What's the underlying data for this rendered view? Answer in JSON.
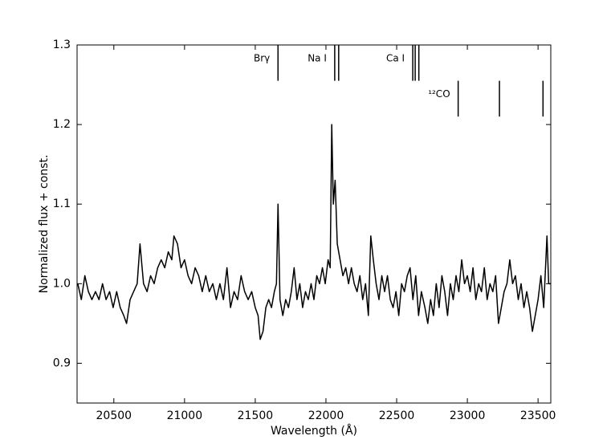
{
  "chart_data": {
    "type": "line",
    "xlabel": "Wavelength (Å)",
    "ylabel": "Normalized flux + const.",
    "xlim": [
      20240,
      23590
    ],
    "ylim": [
      0.85,
      1.3
    ],
    "xticks": [
      20500,
      21000,
      21500,
      22000,
      22500,
      23000,
      23500
    ],
    "yticks": [
      0.9,
      {
        "value": 1,
        "label": "1.0"
      },
      1.1,
      1.2,
      1.3
    ],
    "grid": false,
    "series": [
      {
        "color": "#000000",
        "x": [
          20245,
          20270,
          20295,
          20320,
          20345,
          20370,
          20395,
          20420,
          20445,
          20470,
          20495,
          20520,
          20545,
          20570,
          20590,
          20615,
          20640,
          20665,
          20685,
          20710,
          20735,
          20760,
          20785,
          20810,
          20835,
          20860,
          20885,
          20910,
          20925,
          20950,
          20975,
          21000,
          21025,
          21050,
          21075,
          21100,
          21125,
          21150,
          21175,
          21200,
          21225,
          21250,
          21275,
          21300,
          21325,
          21350,
          21375,
          21400,
          21425,
          21450,
          21475,
          21500,
          21520,
          21535,
          21555,
          21575,
          21595,
          21615,
          21635,
          21650,
          21661,
          21675,
          21695,
          21715,
          21735,
          21755,
          21775,
          21795,
          21815,
          21835,
          21855,
          21875,
          21895,
          21915,
          21935,
          21955,
          21975,
          21995,
          22015,
          22030,
          22041,
          22052,
          22065,
          22080,
          22100,
          22120,
          22140,
          22160,
          22180,
          22200,
          22220,
          22240,
          22260,
          22280,
          22300,
          22317,
          22335,
          22355,
          22375,
          22395,
          22415,
          22435,
          22455,
          22475,
          22495,
          22515,
          22535,
          22555,
          22575,
          22595,
          22615,
          22635,
          22655,
          22675,
          22700,
          22720,
          22740,
          22760,
          22780,
          22800,
          22820,
          22840,
          22860,
          22880,
          22900,
          22920,
          22940,
          22960,
          22980,
          23000,
          23020,
          23040,
          23060,
          23080,
          23100,
          23120,
          23140,
          23160,
          23180,
          23200,
          23220,
          23240,
          23260,
          23280,
          23300,
          23320,
          23340,
          23360,
          23380,
          23400,
          23420,
          23440,
          23460,
          23480,
          23500,
          23520,
          23540,
          23563,
          23575,
          23590
        ],
        "values": [
          1.0,
          0.98,
          1.01,
          0.99,
          0.98,
          0.99,
          0.98,
          1.0,
          0.98,
          0.99,
          0.97,
          0.99,
          0.97,
          0.96,
          0.95,
          0.98,
          0.99,
          1.0,
          1.05,
          1.0,
          0.99,
          1.01,
          1.0,
          1.02,
          1.03,
          1.02,
          1.04,
          1.03,
          1.06,
          1.05,
          1.02,
          1.03,
          1.01,
          1.0,
          1.02,
          1.01,
          0.99,
          1.01,
          0.99,
          1.0,
          0.98,
          1.0,
          0.98,
          1.02,
          0.97,
          0.99,
          0.98,
          1.01,
          0.99,
          0.98,
          0.99,
          0.97,
          0.96,
          0.93,
          0.94,
          0.97,
          0.98,
          0.97,
          0.99,
          1.0,
          1.1,
          0.98,
          0.96,
          0.98,
          0.97,
          0.99,
          1.02,
          0.98,
          1.0,
          0.97,
          0.99,
          0.98,
          1.0,
          0.98,
          1.01,
          1.0,
          1.02,
          1.0,
          1.03,
          1.02,
          1.2,
          1.1,
          1.13,
          1.05,
          1.03,
          1.01,
          1.02,
          1.0,
          1.02,
          1.0,
          0.99,
          1.01,
          0.98,
          1.0,
          0.96,
          1.06,
          1.03,
          1.0,
          0.98,
          1.01,
          0.99,
          1.01,
          0.98,
          0.97,
          0.99,
          0.96,
          1.0,
          0.99,
          1.01,
          1.02,
          0.98,
          1.01,
          0.96,
          0.99,
          0.97,
          0.95,
          0.98,
          0.96,
          1.0,
          0.97,
          1.01,
          0.99,
          0.96,
          1.0,
          0.98,
          1.01,
          0.99,
          1.03,
          1.0,
          1.01,
          0.99,
          1.02,
          0.98,
          1.0,
          0.99,
          1.02,
          0.98,
          1.0,
          0.99,
          1.01,
          0.95,
          0.97,
          0.99,
          1.0,
          1.03,
          1.0,
          1.01,
          0.98,
          1.0,
          0.97,
          0.99,
          0.97,
          0.94,
          0.96,
          0.98,
          1.01,
          0.97,
          1.06,
          1.0,
          1.0
        ]
      }
    ],
    "line_markers": [
      {
        "label": "Brγ",
        "wavelengths": [
          21661
        ],
        "y_range": [
          1.255,
          1.3
        ]
      },
      {
        "label": "Na I",
        "wavelengths": [
          22062,
          22090
        ],
        "y_range": [
          1.255,
          1.3
        ]
      },
      {
        "label": "Ca I",
        "wavelengths": [
          22614,
          22631,
          22657
        ],
        "y_range": [
          1.255,
          1.3
        ]
      },
      {
        "label": "¹²CO",
        "wavelengths": [
          22935,
          23227,
          23535
        ],
        "y_range": [
          1.21,
          1.255
        ]
      }
    ]
  }
}
